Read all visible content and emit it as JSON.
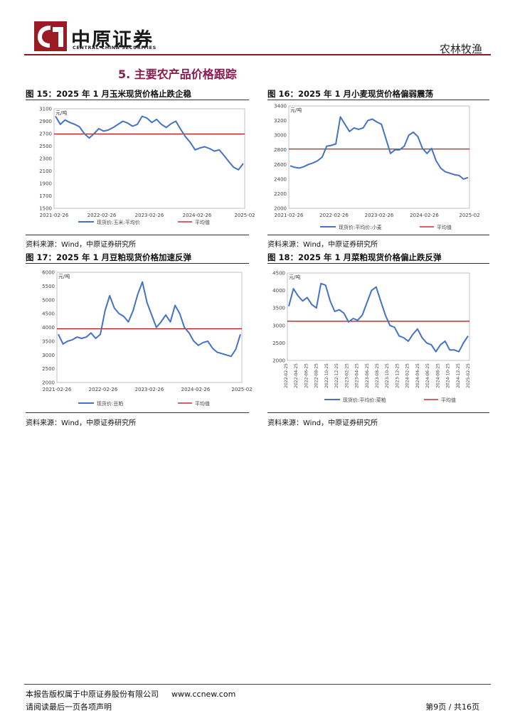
{
  "header": {
    "logo_cn": "中原证券",
    "logo_en": "CENTRAL CHINA SECURITIES",
    "sector": "农林牧渔"
  },
  "section": {
    "title": "5. 主要农产品价格跟踪"
  },
  "figures": [
    {
      "title": "图 15：2025 年 1 月玉米现货价格止跌企稳",
      "source": "资料来源：Wind，中原证券研究所"
    },
    {
      "title": "图 16：2025 年 1 月小麦现货价格偏弱震荡",
      "source": "资料来源：Wind，中原证券研究所"
    },
    {
      "title": "图 17：2025 年 1 月豆粕现货价格加速反弹",
      "source": "资料来源：Wind，中原证券研究所"
    },
    {
      "title": "图 18：2025 年 1 月菜粕现货价格偏止跌反弹",
      "source": "资料来源：Wind，中原证券研究所"
    }
  ],
  "chart_data": [
    {
      "type": "line",
      "unit": "元/吨",
      "x_ticks": [
        "2021-02-26",
        "2022-02-26",
        "2023-02-26",
        "2024-02-26",
        "2025-02"
      ],
      "ylim": [
        1500,
        3100
      ],
      "y_ticks": [
        1500,
        1700,
        1900,
        2100,
        2300,
        2500,
        2700,
        2900,
        3100
      ],
      "series": [
        {
          "name": "现货价:玉米:平均价",
          "color": "#4472c4",
          "values": [
            2980,
            2850,
            2920,
            2880,
            2850,
            2810,
            2700,
            2630,
            2700,
            2780,
            2740,
            2760,
            2800,
            2850,
            2900,
            2870,
            2820,
            2850,
            2980,
            2950,
            2880,
            2930,
            2850,
            2800,
            2860,
            2900,
            2770,
            2650,
            2560,
            2440,
            2470,
            2490,
            2460,
            2420,
            2440,
            2350,
            2250,
            2160,
            2120,
            2220
          ]
        },
        {
          "name": "平均值",
          "color": "#c00000",
          "values": [
            2695
          ]
        }
      ]
    },
    {
      "type": "line",
      "unit": "元/吨",
      "x_ticks": [
        "2021-02-26",
        "2022-02-26",
        "2023-02-26",
        "2024-02-26",
        "2025-02"
      ],
      "ylim": [
        2000,
        3400
      ],
      "y_ticks": [
        2000,
        2200,
        2400,
        2600,
        2800,
        3000,
        3200,
        3400
      ],
      "series": [
        {
          "name": "现货价:平均价:小麦",
          "color": "#4472c4",
          "values": [
            2580,
            2560,
            2550,
            2570,
            2600,
            2620,
            2650,
            2700,
            2850,
            2860,
            2880,
            3250,
            3150,
            3050,
            3100,
            3080,
            3100,
            3200,
            3220,
            3180,
            3150,
            2950,
            2750,
            2800,
            2800,
            2850,
            3000,
            3040,
            2980,
            2820,
            2750,
            2820,
            2650,
            2550,
            2500,
            2480,
            2460,
            2450,
            2400,
            2420
          ]
        },
        {
          "name": "平均值",
          "color": "#c00000",
          "values": [
            2810
          ]
        }
      ]
    },
    {
      "type": "line",
      "unit": "元/吨",
      "x_ticks": [
        "2021-02-26",
        "2022-02-26",
        "2023-02-26",
        "2024-02-26",
        "2025-02"
      ],
      "ylim": [
        2000,
        6000
      ],
      "y_ticks": [
        2000,
        2500,
        3000,
        3500,
        4000,
        4500,
        5000,
        5500,
        6000
      ],
      "series": [
        {
          "name": "现货价:豆粕",
          "color": "#4472c4",
          "values": [
            3750,
            3400,
            3500,
            3550,
            3650,
            3600,
            3650,
            3800,
            3600,
            3750,
            4600,
            5150,
            4700,
            4500,
            4400,
            4200,
            4600,
            5200,
            5650,
            4900,
            4450,
            4000,
            4200,
            4450,
            4200,
            4800,
            4500,
            4000,
            3800,
            3500,
            3350,
            3450,
            3500,
            3250,
            3100,
            3050,
            3000,
            2950,
            3200,
            3750
          ]
        },
        {
          "name": "平均值",
          "color": "#c00000",
          "values": [
            3950
          ]
        }
      ]
    },
    {
      "type": "line",
      "unit": "元/吨",
      "x_ticks": [
        "2022-02-25",
        "2022-04-25",
        "2022-06-25",
        "2022-08-25",
        "2022-10-25",
        "2022-12-25",
        "2023-02-25",
        "2023-04-25",
        "2023-06-25",
        "2023-08-25",
        "2023-10-25",
        "2023-12-25",
        "2024-02-25",
        "2024-04-25",
        "2024-06-25",
        "2024-08-25",
        "2024-10-25",
        "2024-12-25",
        "2025-02-25"
      ],
      "ylim": [
        2000,
        4500
      ],
      "y_ticks": [
        2000,
        2500,
        3000,
        3500,
        4000,
        4500
      ],
      "series": [
        {
          "name": "现货价:平均价:菜粕",
          "color": "#4472c4",
          "values": [
            3550,
            4050,
            3850,
            3700,
            3800,
            3600,
            3500,
            4200,
            4150,
            3700,
            3400,
            3450,
            3350,
            3100,
            3200,
            3150,
            3300,
            3650,
            4000,
            4100,
            3700,
            3300,
            3000,
            2950,
            2700,
            2650,
            2550,
            2750,
            2900,
            2650,
            2500,
            2450,
            2250,
            2450,
            2550,
            2300,
            2300,
            2250,
            2500,
            2700
          ]
        },
        {
          "name": "平均值",
          "color": "#c00000",
          "values": [
            3120
          ]
        }
      ]
    }
  ],
  "footer": {
    "copyright": "本报告版权属于中原证券股份有限公司",
    "url": "www.ccnew.com",
    "disclaimer": "请阅读最后一页各项声明",
    "page": "第9页 / 共16页"
  }
}
